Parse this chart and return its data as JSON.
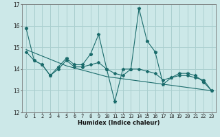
{
  "title": "",
  "xlabel": "Humidex (Indice chaleur)",
  "background_color": "#cce8e8",
  "grid_color": "#aacfcf",
  "line_color": "#1a6b6b",
  "x": [
    0,
    1,
    2,
    3,
    4,
    5,
    6,
    7,
    8,
    9,
    10,
    11,
    12,
    13,
    14,
    15,
    16,
    17,
    18,
    19,
    20,
    21,
    22,
    23
  ],
  "series_spiky": [
    15.9,
    14.4,
    14.2,
    13.7,
    14.1,
    14.5,
    14.2,
    14.2,
    14.7,
    15.6,
    14.0,
    12.5,
    14.0,
    14.0,
    16.8,
    15.3,
    14.8,
    13.3,
    13.6,
    13.8,
    13.8,
    13.7,
    13.4,
    13.0
  ],
  "series_smooth": [
    14.8,
    14.4,
    14.2,
    13.7,
    14.0,
    14.4,
    14.1,
    14.1,
    14.2,
    14.3,
    14.0,
    13.8,
    13.7,
    14.0,
    14.0,
    13.9,
    13.8,
    13.5,
    13.6,
    13.7,
    13.7,
    13.6,
    13.5,
    13.0
  ],
  "series_trend": [
    14.9,
    14.75,
    14.6,
    14.45,
    14.3,
    14.15,
    14.05,
    13.95,
    13.85,
    13.75,
    13.65,
    13.6,
    13.55,
    13.5,
    13.45,
    13.4,
    13.35,
    13.3,
    13.25,
    13.2,
    13.15,
    13.1,
    13.05,
    13.0
  ],
  "ylim": [
    12,
    17
  ],
  "xlim": [
    -0.5,
    23.5
  ],
  "yticks": [
    12,
    13,
    14,
    15,
    16,
    17
  ],
  "xticks": [
    0,
    1,
    2,
    3,
    4,
    5,
    6,
    7,
    8,
    9,
    10,
    11,
    12,
    13,
    14,
    15,
    16,
    17,
    18,
    19,
    20,
    21,
    22,
    23
  ],
  "xlabel_fontsize": 6.0,
  "tick_fontsize": 5.0
}
